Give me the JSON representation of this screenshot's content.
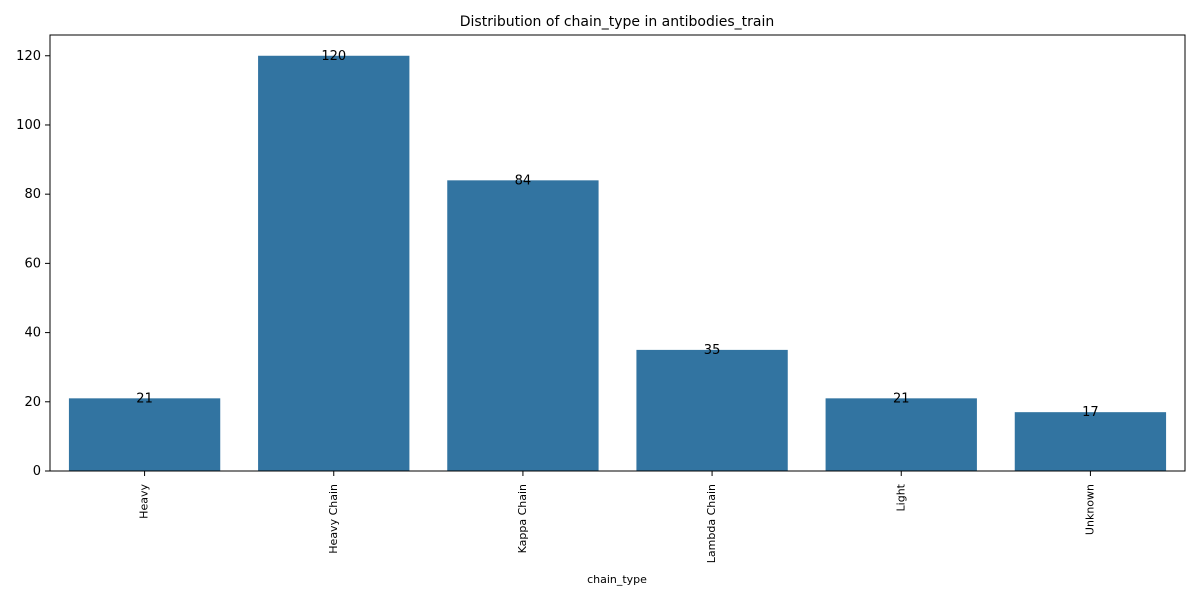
{
  "chart_data": {
    "type": "bar",
    "title": "Distribution of chain_type in antibodies_train",
    "xlabel": "chain_type",
    "ylabel": "",
    "categories": [
      "Heavy",
      "Heavy Chain",
      "Kappa Chain",
      "Lambda Chain",
      "Light",
      "Unknown"
    ],
    "values": [
      21,
      120,
      84,
      35,
      21,
      17
    ],
    "data_labels": [
      "21",
      "120",
      "84",
      "35",
      "21",
      "17"
    ],
    "ylim": [
      0,
      126
    ],
    "yticks": [
      0,
      20,
      40,
      60,
      80,
      100,
      120
    ],
    "grid": false,
    "legend": "none",
    "bar_color": "#3274a1"
  }
}
